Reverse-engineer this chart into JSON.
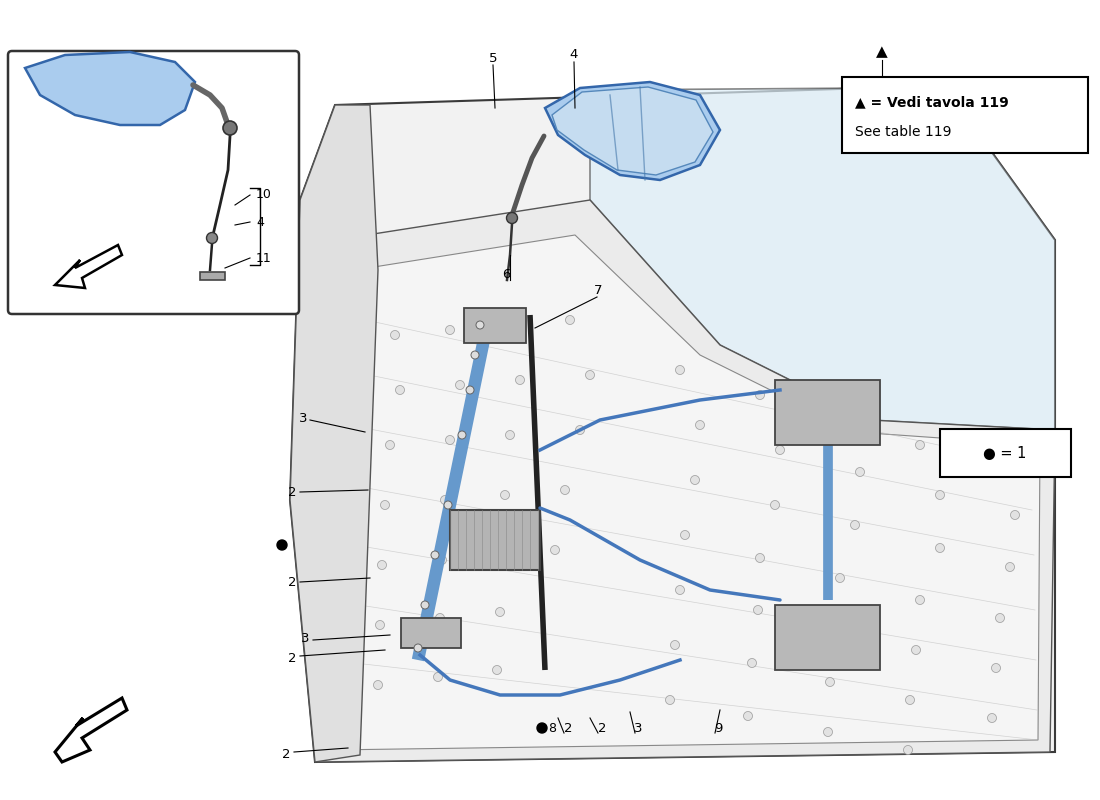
{
  "bg": "#ffffff",
  "mirror_blue": "#aaccee",
  "mirror_blue_dark": "#88aacc",
  "mirror_glass": "#c8ddf0",
  "door_bg": "#f0f0f0",
  "door_edge": "#444444",
  "inner_bg": "#e8e8e8",
  "rail_blue": "#6699cc",
  "part_gray": "#b0b0b0",
  "cable_blue": "#4477bb",
  "wm1": "#cccccc",
  "wm2": "#d0d0b0",
  "legend_line1": "▲ = Vedi tavola 119",
  "legend_line2": "See table 119",
  "dot_legend": "● = 1",
  "fs": 9.5
}
